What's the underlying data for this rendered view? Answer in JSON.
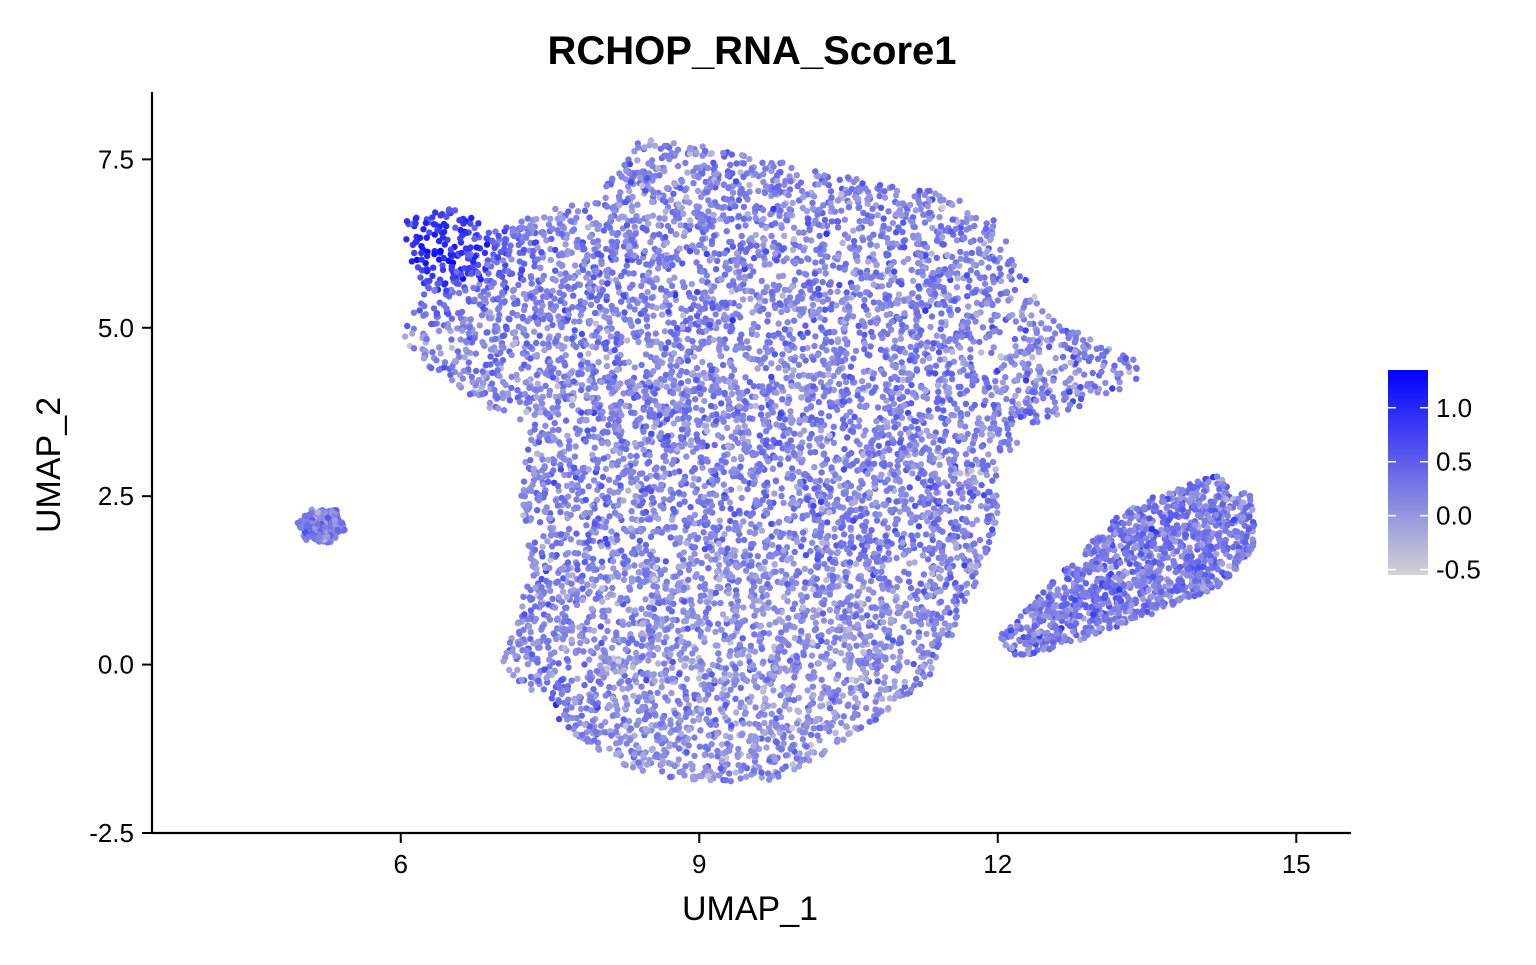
{
  "chart_data": {
    "type": "scatter",
    "title": "RCHOP_RNA_Score1",
    "xlabel": "UMAP_1",
    "ylabel": "UMAP_2",
    "xlim": [
      3.5,
      15.55
    ],
    "ylim": [
      -2.5,
      8.5
    ],
    "x_ticks": [
      6,
      9,
      12,
      15
    ],
    "x_tick_labels": [
      "6",
      "9",
      "12",
      "15"
    ],
    "y_ticks": [
      -2.5,
      0.0,
      2.5,
      5.0,
      7.5
    ],
    "y_tick_labels": [
      "-2.5",
      "0.0",
      "2.5",
      "5.0",
      "7.5"
    ],
    "grid": false,
    "legend": {
      "placement": "right",
      "type": "continuous colorbar",
      "min": -0.55,
      "max": 1.35,
      "ticks": [
        1.0,
        0.5,
        0.0,
        -0.5
      ],
      "tick_labels": [
        "1.0",
        "0.5",
        "0.0",
        "-0.5"
      ]
    },
    "color_scale": {
      "low": "#d3d3d3",
      "high": "#0000ff",
      "low_value": -0.55,
      "high_value": 1.35
    },
    "regions": [
      {
        "name": "main",
        "polygon": [
          [
            6.0,
            4.9
          ],
          [
            6.2,
            5.5
          ],
          [
            6.0,
            6.6
          ],
          [
            6.6,
            6.8
          ],
          [
            7.0,
            6.5
          ],
          [
            7.6,
            6.8
          ],
          [
            8.0,
            7.0
          ],
          [
            8.4,
            7.8
          ],
          [
            9.0,
            7.7
          ],
          [
            9.7,
            7.5
          ],
          [
            10.3,
            7.3
          ],
          [
            11.0,
            7.1
          ],
          [
            11.5,
            7.0
          ],
          [
            12.0,
            6.6
          ],
          [
            12.2,
            5.9
          ],
          [
            12.5,
            5.2
          ],
          [
            13.0,
            4.8
          ],
          [
            13.4,
            4.6
          ],
          [
            13.4,
            4.2
          ],
          [
            12.8,
            3.8
          ],
          [
            12.4,
            3.6
          ],
          [
            12.0,
            3.0
          ],
          [
            12.0,
            2.2
          ],
          [
            11.9,
            1.6
          ],
          [
            11.6,
            0.6
          ],
          [
            11.3,
            -0.2
          ],
          [
            10.8,
            -0.8
          ],
          [
            10.3,
            -1.3
          ],
          [
            9.8,
            -1.7
          ],
          [
            9.3,
            -1.75
          ],
          [
            8.8,
            -1.7
          ],
          [
            8.2,
            -1.5
          ],
          [
            7.8,
            -1.1
          ],
          [
            7.4,
            -0.6
          ],
          [
            7.0,
            0.0
          ],
          [
            7.2,
            0.8
          ],
          [
            7.3,
            1.6
          ],
          [
            7.2,
            2.5
          ],
          [
            7.3,
            3.5
          ],
          [
            6.9,
            3.8
          ],
          [
            6.5,
            4.2
          ],
          [
            6.2,
            4.5
          ]
        ]
      },
      {
        "name": "right-lobe",
        "polygon": [
          [
            12.0,
            0.4
          ],
          [
            12.4,
            1.0
          ],
          [
            12.8,
            1.6
          ],
          [
            13.2,
            2.2
          ],
          [
            13.7,
            2.6
          ],
          [
            14.2,
            2.8
          ],
          [
            14.55,
            2.5
          ],
          [
            14.6,
            1.8
          ],
          [
            14.3,
            1.2
          ],
          [
            13.8,
            0.9
          ],
          [
            13.3,
            0.6
          ],
          [
            12.7,
            0.3
          ],
          [
            12.2,
            0.1
          ]
        ]
      },
      {
        "name": "left-cluster",
        "polygon": [
          [
            4.95,
            2.1
          ],
          [
            5.1,
            2.3
          ],
          [
            5.35,
            2.3
          ],
          [
            5.45,
            2.0
          ],
          [
            5.3,
            1.8
          ],
          [
            5.05,
            1.85
          ]
        ]
      }
    ],
    "high_score_region": {
      "center": [
        6.3,
        6.2
      ],
      "radius": 0.6
    },
    "n_points": 9000
  }
}
